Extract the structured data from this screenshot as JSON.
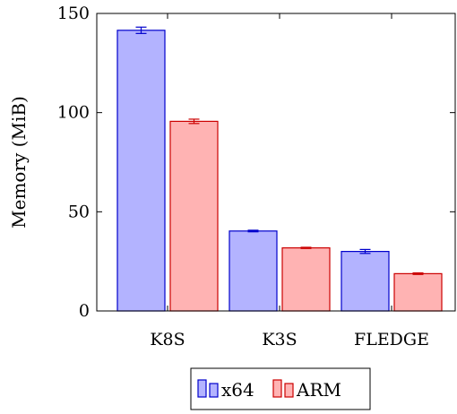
{
  "chart_data": {
    "type": "bar",
    "categories": [
      "K8S",
      "K3S",
      "FLEDGE"
    ],
    "ylabel": "Memory (MiB)",
    "xlabel": "",
    "title": "",
    "ylim": [
      0,
      150
    ],
    "yticks": [
      0,
      50,
      100,
      150
    ],
    "grid": false,
    "legend_position": "bottom",
    "series": [
      {
        "name": "x64",
        "fill": "#b3b3ff",
        "stroke": "#0000cc",
        "values": [
          141.5,
          40.3,
          30.0
        ],
        "errors": [
          1.6,
          0.4,
          1.0
        ]
      },
      {
        "name": "ARM",
        "fill": "#ffb3b3",
        "stroke": "#cc0000",
        "values": [
          95.6,
          31.8,
          18.8
        ],
        "errors": [
          1.1,
          0.3,
          0.4
        ]
      }
    ]
  }
}
